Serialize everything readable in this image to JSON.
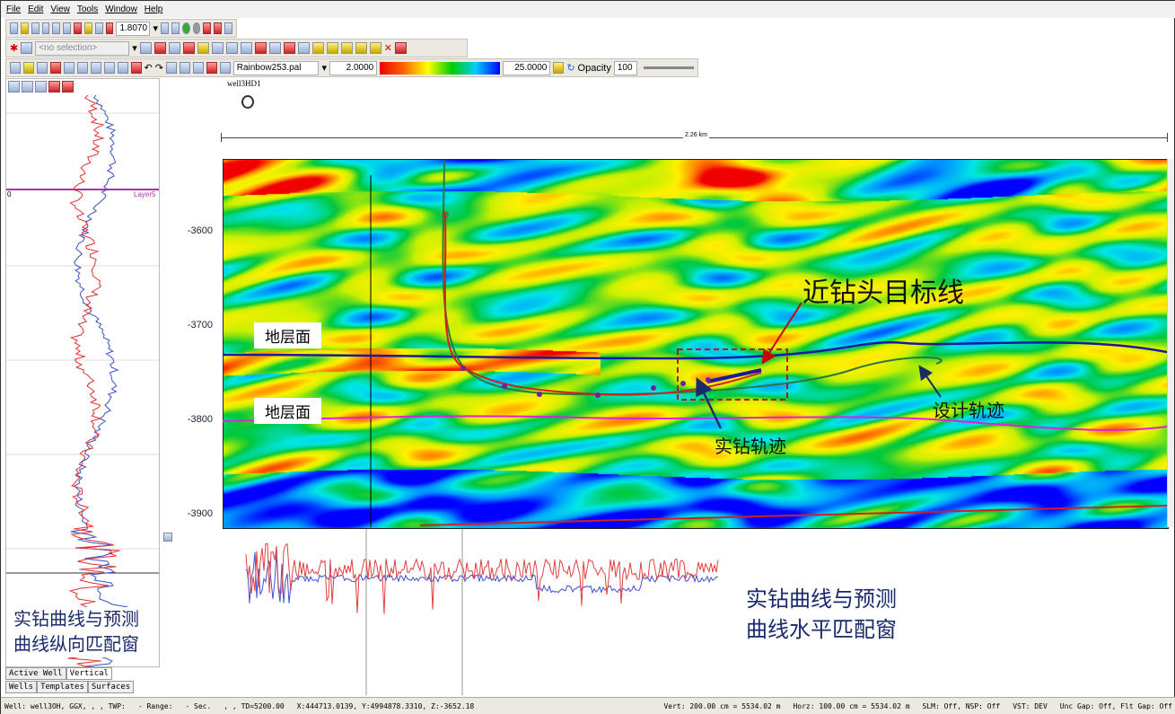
{
  "menu": [
    "File",
    "Edit",
    "View",
    "Tools",
    "Window",
    "Help"
  ],
  "toolbar": {
    "zoom_value": "1.8070",
    "selection_placeholder": "<no selection>",
    "palette": "Rainbow253.pal",
    "color_min": "2.0000",
    "color_max": "25.0000",
    "opacity_label": "Opacity",
    "opacity_value": "100"
  },
  "well": {
    "name": "well3HD1"
  },
  "scale_bar": "2.26 km",
  "depth_ticks": [
    "-3600",
    "-3700",
    "-3800",
    "-3900"
  ],
  "left_panel": {
    "layer_label": "Layer5",
    "layer_value": "0",
    "caption_1": "实钻曲线与预测",
    "caption_2": "曲线纵向匹配窗",
    "tabs_row1": [
      "Active Well",
      "Vertical"
    ],
    "tabs_row2": [
      "Wells",
      "Templates",
      "Surfaces"
    ]
  },
  "annotations": {
    "target_line": "近钻头目标线",
    "horizon_1": "地层面",
    "horizon_2": "地层面",
    "design_track": "设计轨迹",
    "actual_track": "实钻轨迹",
    "horiz_caption_1": "实钻曲线与预测",
    "horiz_caption_2": "曲线水平匹配窗"
  },
  "colors": {
    "horizon_top": "#1a1aa0",
    "horizon_bottom": "#e020e0",
    "actual_track": "#d02020",
    "design_track": "#2a7a3a"
  },
  "status": {
    "well": "Well: well3OH, GGX, , , TWP:",
    "range": "- Range:",
    "sec": "- Sec.",
    "td": ", , TD=5200.00",
    "coords": "X:444713.0139, Y:4994878.3310, Z:-3652.18",
    "vert": "Vert: 200.00 cm = 5534.02 m",
    "horz": "Horz: 100.00 cm = 5534.02 m",
    "slm": "SLM: Off, NSP: Off",
    "vst": "VST: DEV",
    "gap": "Unc Gap: Off, Flt Gap: Off"
  }
}
